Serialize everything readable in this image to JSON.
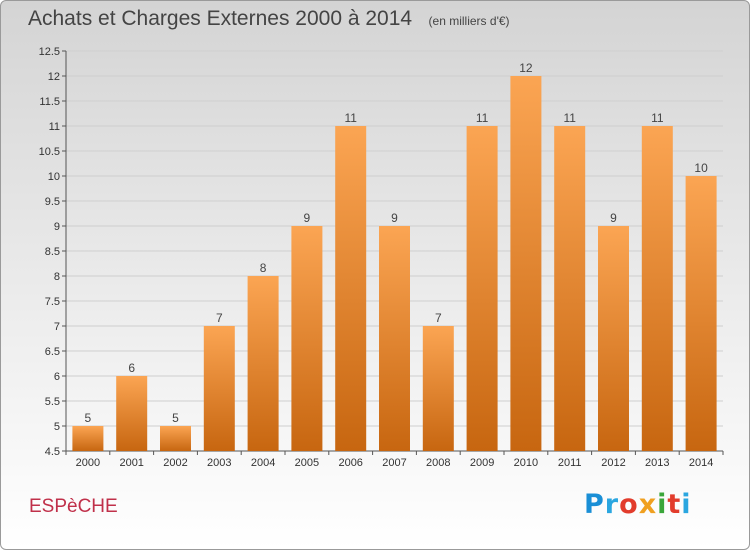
{
  "header": {
    "title": "Achats et Charges Externes 2000 à 2014",
    "unit": "(en milliers d'€)"
  },
  "footer": {
    "commune": "ESPèCHE",
    "logo": "Proxiti",
    "logo_colors": [
      "#1a8fd6",
      "#2aa6e0",
      "#e23c2c",
      "#f0a020",
      "#3aa63a",
      "#e23c2c",
      "#2aa6e0"
    ]
  },
  "colors": {
    "bar_light": "#fba553",
    "bar_dark": "#c76610",
    "grid": "#cfcfcf"
  },
  "chart_data": {
    "type": "bar",
    "title": "Achats et Charges Externes 2000 à 2014",
    "subtitle": "(en milliers d'€)",
    "categories": [
      "2000",
      "2001",
      "2002",
      "2003",
      "2004",
      "2005",
      "2006",
      "2007",
      "2008",
      "2009",
      "2010",
      "2011",
      "2012",
      "2013",
      "2014"
    ],
    "values": [
      5,
      6,
      5,
      7,
      8,
      9,
      11,
      9,
      7,
      11,
      12,
      11,
      9,
      11,
      10
    ],
    "data_labels": [
      "5",
      "6",
      "5",
      "7",
      "8",
      "9",
      "11",
      "9",
      "7",
      "11",
      "12",
      "11",
      "9",
      "11",
      "10"
    ],
    "ylim": [
      4.5,
      12.5
    ],
    "yticks": [
      4.5,
      5,
      5.5,
      6,
      6.5,
      7,
      7.5,
      8,
      8.5,
      9,
      9.5,
      10,
      10.5,
      11,
      11.5,
      12,
      12.5
    ],
    "ytick_labels": [
      "4.5",
      "5",
      "5.5",
      "6",
      "6.5",
      "7",
      "7.5",
      "8",
      "8.5",
      "9",
      "9.5",
      "10",
      "10.5",
      "11",
      "11.5",
      "12",
      "12.5"
    ],
    "grid": true,
    "legend": "none"
  }
}
